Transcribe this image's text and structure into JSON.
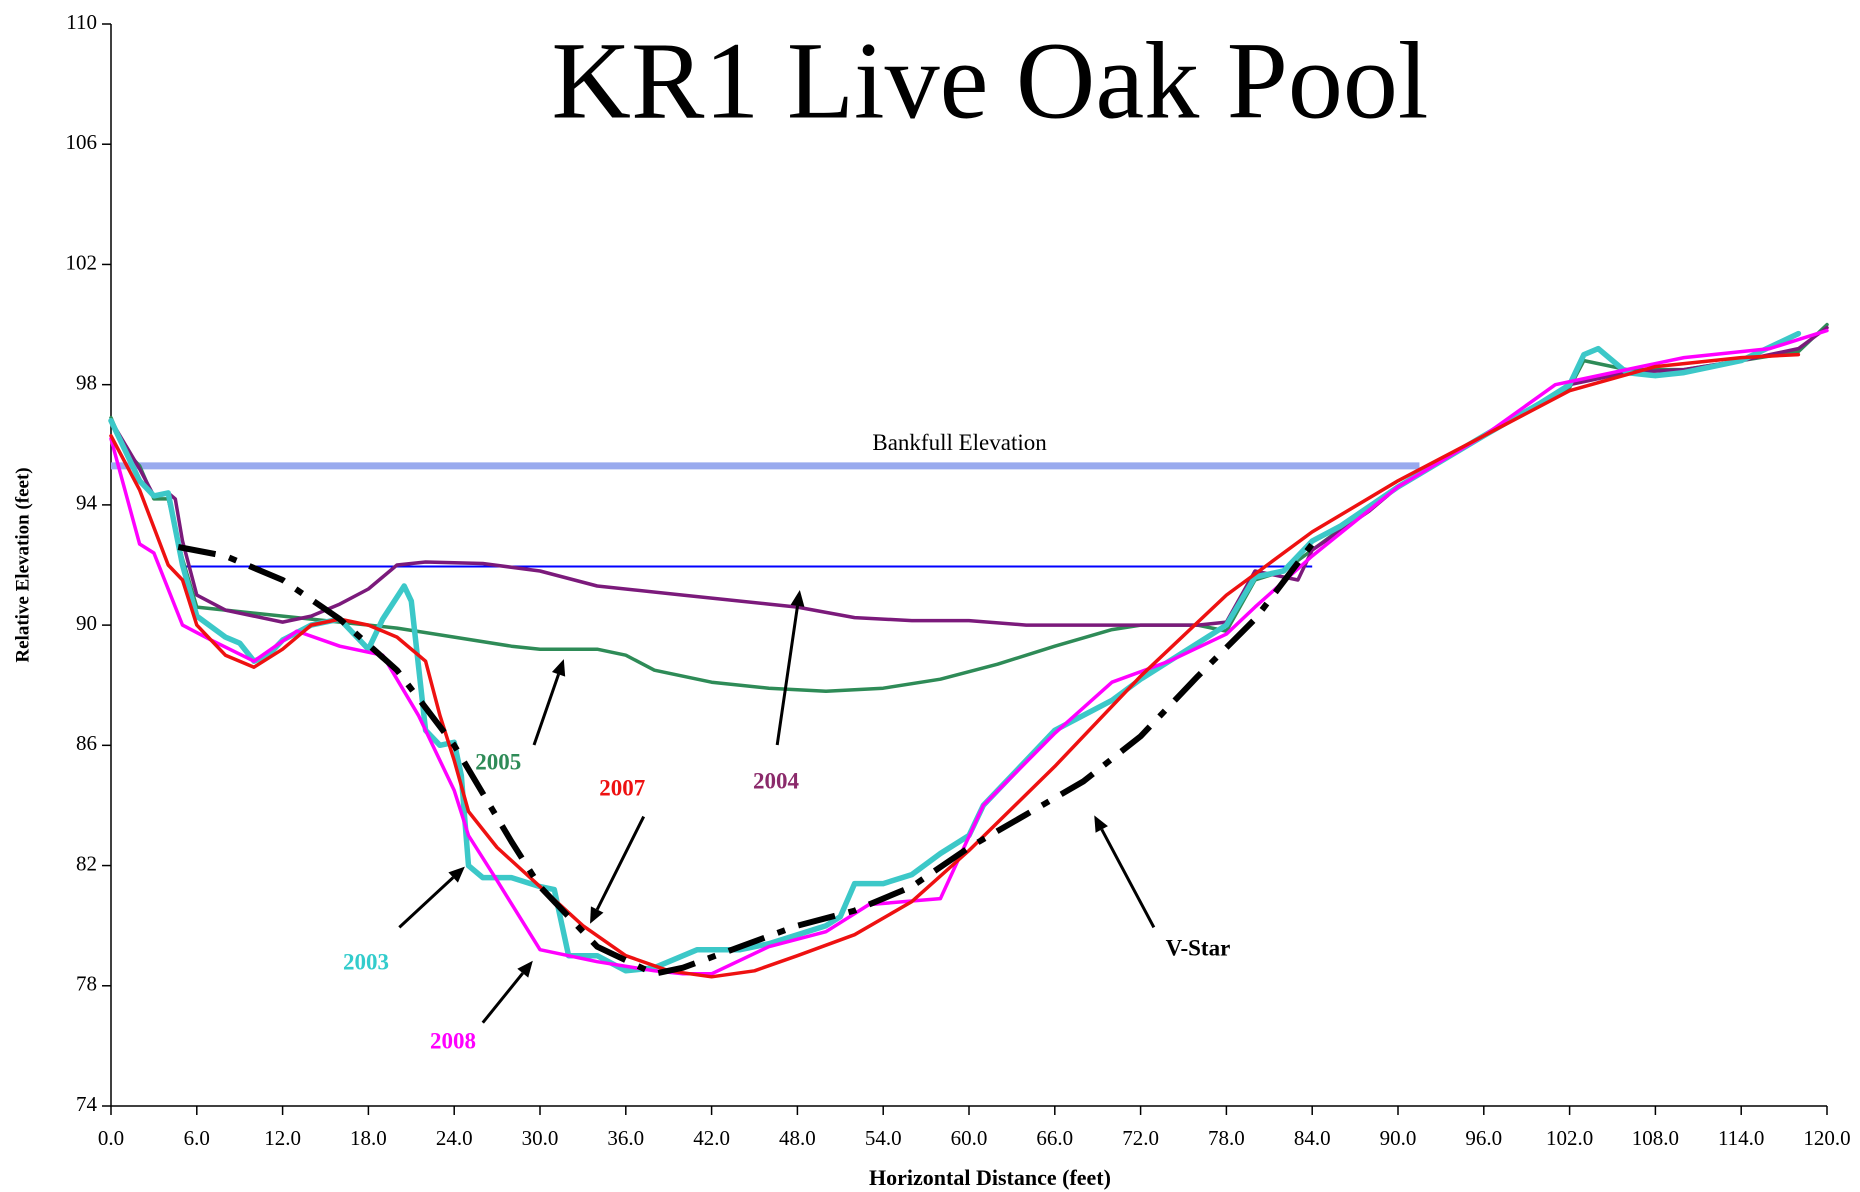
{
  "chart_data": {
    "type": "line",
    "title": "KR1 Live Oak Pool",
    "xlabel": "Horizontal Distance (feet)",
    "ylabel": "Relative Elevation (feet)",
    "xlim": [
      0,
      120
    ],
    "ylim": [
      74,
      110
    ],
    "xticks": [
      {
        "value": 0,
        "label": "0.0"
      },
      {
        "value": 6,
        "label": "6.0"
      },
      {
        "value": 12,
        "label": "12.0"
      },
      {
        "value": 18,
        "label": "18.0"
      },
      {
        "value": 24,
        "label": "24.0"
      },
      {
        "value": 30,
        "label": "30.0"
      },
      {
        "value": 36,
        "label": "36.0"
      },
      {
        "value": 42,
        "label": "42.0"
      },
      {
        "value": 48,
        "label": "48.0"
      },
      {
        "value": 54,
        "label": "54.0"
      },
      {
        "value": 60,
        "label": "60.0"
      },
      {
        "value": 66,
        "label": "66.0"
      },
      {
        "value": 72,
        "label": "72.0"
      },
      {
        "value": 78,
        "label": "78.0"
      },
      {
        "value": 84,
        "label": "84.0"
      },
      {
        "value": 90,
        "label": "90.0"
      },
      {
        "value": 96,
        "label": "96.0"
      },
      {
        "value": 102,
        "label": "102.0"
      },
      {
        "value": 108,
        "label": "108.0"
      },
      {
        "value": 114,
        "label": "114.0"
      },
      {
        "value": 120,
        "label": "120.0"
      }
    ],
    "yticks": [
      74,
      78,
      82,
      86,
      90,
      94,
      98,
      102,
      106,
      110
    ],
    "reference_lines": [
      {
        "label": "Bankfull Elevation",
        "y": 95.3,
        "x": [
          0,
          91.5
        ],
        "color": "#99aaee"
      },
      {
        "y": 91.95,
        "x": [
          5,
          84
        ],
        "color": "#0000ff"
      }
    ],
    "series": [
      {
        "name": "2005",
        "color": "#2e8b57",
        "x": [
          0,
          1,
          2,
          3,
          4,
          5,
          6,
          8,
          12,
          16,
          20,
          24,
          28,
          30,
          34,
          36,
          38,
          42,
          46,
          50,
          54,
          58,
          62,
          66,
          70,
          72,
          76,
          78,
          80,
          82,
          84,
          88,
          90,
          96,
          102,
          103,
          106,
          110,
          114,
          118,
          120
        ],
        "values": [
          96.9,
          95.8,
          95.3,
          94.2,
          94.2,
          92.2,
          90.6,
          90.5,
          90.3,
          90.1,
          89.9,
          89.6,
          89.3,
          89.2,
          89.2,
          89,
          88.5,
          88.1,
          87.9,
          87.8,
          87.9,
          88.2,
          88.7,
          89.3,
          89.85,
          90,
          90,
          89.8,
          91.5,
          91.8,
          92.5,
          93.9,
          94.6,
          96.3,
          97.9,
          98.8,
          98.5,
          98.5,
          98.8,
          99.1,
          100
        ]
      },
      {
        "name": "2004",
        "color": "#7b1a7b",
        "x": [
          0,
          2,
          3,
          4,
          4.5,
          5,
          6,
          8,
          10,
          12,
          14,
          16,
          18,
          20,
          22,
          26,
          30,
          34,
          40,
          46,
          48,
          52,
          56,
          60,
          64,
          68,
          72,
          76,
          78,
          80,
          83,
          84,
          88,
          90,
          96,
          102,
          106,
          110,
          114,
          118,
          120
        ],
        "values": [
          96.8,
          95.2,
          94.3,
          94.4,
          94.2,
          92.8,
          91,
          90.5,
          90.3,
          90.1,
          90.3,
          90.7,
          91.2,
          92,
          92.1,
          92.05,
          91.8,
          91.3,
          91,
          90.7,
          90.6,
          90.25,
          90.15,
          90.15,
          90,
          90,
          90,
          90,
          90.1,
          91.8,
          91.5,
          92.5,
          93.8,
          94.6,
          96.3,
          98,
          98.4,
          98.5,
          98.8,
          99.2,
          99.9
        ]
      },
      {
        "name": "2003",
        "color": "#3cc8c8",
        "x": [
          0,
          2,
          3,
          4,
          5,
          6,
          8,
          9,
          10,
          11,
          12,
          14,
          16,
          18,
          19,
          20.5,
          21,
          22,
          23,
          24,
          24.5,
          25,
          26,
          28,
          30,
          31,
          32,
          34,
          36,
          38,
          40,
          41,
          44,
          46,
          48,
          50,
          51,
          52,
          54,
          56,
          58,
          60,
          61,
          64,
          66,
          70,
          72,
          74,
          78,
          80,
          82,
          84,
          86,
          90,
          96,
          100,
          102,
          103,
          104,
          106,
          108,
          110,
          114,
          118
        ],
        "values": [
          96.8,
          94.8,
          94.3,
          94.4,
          92,
          90.3,
          89.6,
          89.4,
          88.8,
          89,
          89.5,
          90,
          90.2,
          89.2,
          90.2,
          91.3,
          90.8,
          86.5,
          86,
          86.1,
          85,
          82,
          81.6,
          81.6,
          81.3,
          81.2,
          79,
          79,
          78.5,
          78.6,
          79,
          79.2,
          79.2,
          79.4,
          79.7,
          80,
          80.3,
          81.4,
          81.4,
          81.7,
          82.4,
          83,
          84,
          85.5,
          86.5,
          87.5,
          88.2,
          88.8,
          90,
          91.6,
          91.8,
          92.8,
          93.3,
          94.6,
          96.3,
          97.4,
          98,
          99,
          99.2,
          98.4,
          98.3,
          98.4,
          98.8,
          99.7
        ]
      },
      {
        "name": "2008",
        "color": "#ff00ff",
        "x": [
          0,
          2,
          3,
          5,
          7,
          10,
          13,
          16,
          19,
          21.5,
          24,
          25,
          27,
          30,
          34,
          38,
          40,
          42,
          46,
          50,
          53,
          58,
          61,
          66,
          70,
          74,
          78,
          80,
          84,
          90,
          96,
          101,
          106,
          110,
          116,
          120
        ],
        "values": [
          96.2,
          92.7,
          92.4,
          90,
          89.5,
          88.8,
          89.8,
          89.3,
          89,
          87,
          84.5,
          83,
          81.5,
          79.2,
          78.8,
          78.5,
          78.4,
          78.4,
          79.3,
          79.8,
          80.7,
          80.9,
          84,
          86.4,
          88.1,
          88.8,
          89.7,
          90.6,
          92.3,
          94.6,
          96.3,
          98,
          98.5,
          98.9,
          99.2,
          99.8
        ]
      },
      {
        "name": "2007",
        "color": "#ee1111",
        "x": [
          0,
          2,
          4,
          5,
          6,
          8,
          10,
          12,
          14,
          16,
          18,
          20,
          22,
          23,
          24,
          25,
          27,
          30,
          33,
          36,
          39,
          42,
          45,
          48,
          52,
          56,
          60,
          66,
          72,
          78,
          84,
          90,
          96,
          102,
          108,
          114,
          118
        ],
        "values": [
          96.3,
          94.5,
          92,
          91.5,
          90,
          89,
          88.6,
          89.2,
          90,
          90.2,
          90,
          89.6,
          88.8,
          87,
          85.5,
          83.8,
          82.6,
          81.3,
          80,
          79,
          78.5,
          78.3,
          78.5,
          79,
          79.7,
          80.8,
          82.5,
          85.3,
          88.3,
          91,
          93.1,
          94.8,
          96.3,
          97.8,
          98.6,
          98.9,
          99
        ]
      },
      {
        "name": "V-Star",
        "color": "#000000",
        "dashed": true,
        "x": [
          4.7,
          8,
          12,
          16,
          20,
          24,
          28,
          30,
          34,
          38,
          40,
          44,
          48,
          52,
          56,
          60,
          64,
          68,
          72,
          76,
          80,
          84
        ],
        "values": [
          92.6,
          92.3,
          91.5,
          90.2,
          88.5,
          86,
          82.8,
          81.3,
          79.3,
          78.4,
          78.6,
          79.3,
          80,
          80.5,
          81.3,
          82.6,
          83.7,
          84.8,
          86.3,
          88.3,
          90.2,
          92.7
        ]
      }
    ]
  }
}
